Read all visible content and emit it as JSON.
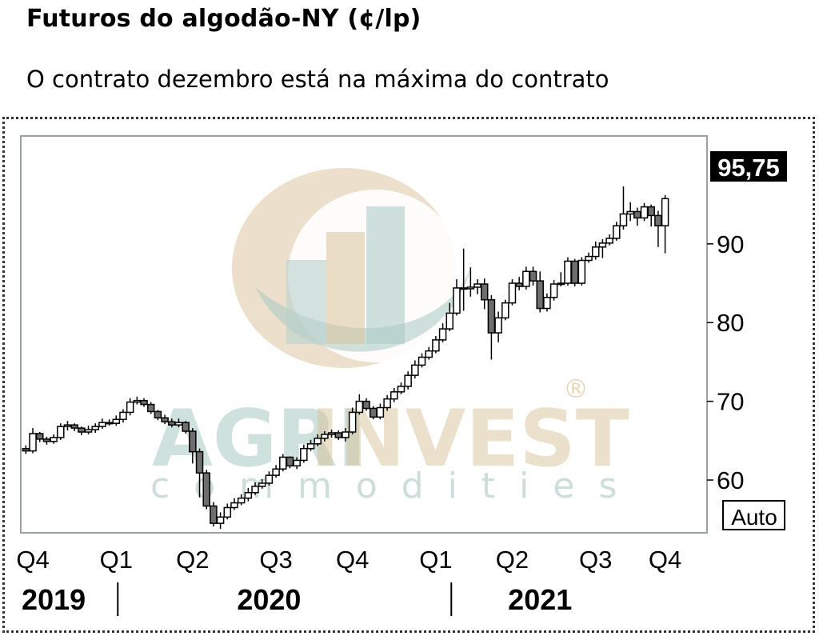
{
  "header": {
    "title": "Futuros do algodão-NY (¢/lp)",
    "subtitle": "O contrato dezembro está na máxima do contrato"
  },
  "watermark": {
    "brand_left": "AGRI",
    "brand_right": "INVEST",
    "sub": "commodities",
    "mark": "®"
  },
  "colors": {
    "accent_tan": "#d9c29a",
    "accent_teal": "#a9c9c3",
    "price_badge_bg": "#000000",
    "plot_border": "#9aa0a8"
  },
  "chart_data": {
    "type": "candlestick",
    "title": "Futuros do algodão-NY (¢/lp)",
    "y_ticks": [
      "90",
      "80",
      "70",
      "60"
    ],
    "y_tick_values": [
      90,
      80,
      70,
      60
    ],
    "ylim": [
      53.5,
      103.5
    ],
    "last_price_label": "95,75",
    "last_price": 95.75,
    "scale_button": "Auto",
    "x_ticks": [
      "Q4",
      "Q1",
      "Q2",
      "Q3",
      "Q4",
      "Q1",
      "Q2",
      "Q3",
      "Q4"
    ],
    "x_tick_weeks": [
      1,
      13,
      24,
      36,
      47,
      59,
      70,
      82,
      92
    ],
    "years": [
      "2019",
      "2020",
      "2021"
    ],
    "year_weeks": [
      4,
      35,
      74
    ],
    "year_separator_weeks": [
      13,
      61
    ],
    "week_range": [
      0,
      95
    ],
    "close": [
      63.7,
      65.9,
      65.2,
      64.9,
      65.4,
      66.8,
      67.0,
      66.6,
      66.1,
      66.4,
      66.8,
      67.3,
      67.2,
      67.7,
      68.6,
      69.9,
      70.1,
      69.6,
      68.7,
      67.9,
      67.4,
      67.0,
      67.3,
      66.2,
      63.6,
      60.9,
      56.7,
      54.5,
      55.3,
      56.5,
      57.1,
      57.7,
      58.4,
      59.2,
      59.6,
      60.6,
      61.4,
      62.9,
      61.8,
      62.5,
      64.0,
      64.6,
      65.3,
      65.8,
      66.0,
      65.4,
      66.1,
      68.6,
      70.0,
      69.1,
      68.0,
      69.2,
      70.3,
      71.2,
      71.9,
      73.3,
      74.6,
      75.6,
      76.4,
      77.8,
      79.2,
      81.2,
      84.4,
      84.3,
      84.5,
      84.9,
      82.9,
      78.7,
      80.6,
      82.5,
      85.0,
      84.6,
      86.5,
      85.3,
      81.8,
      83.2,
      84.9,
      85.0,
      87.8,
      85.0,
      87.9,
      88.4,
      89.6,
      90.1,
      90.7,
      92.3,
      93.8,
      94.1,
      93.3,
      94.7,
      93.6,
      92.3,
      95.75
    ],
    "open": [
      64.0,
      63.7,
      65.9,
      65.2,
      64.9,
      65.4,
      66.8,
      67.0,
      66.6,
      66.1,
      66.4,
      66.8,
      67.3,
      67.2,
      67.7,
      68.6,
      69.9,
      70.1,
      69.6,
      68.7,
      67.9,
      67.4,
      67.0,
      67.3,
      66.2,
      63.6,
      60.9,
      56.7,
      54.5,
      55.3,
      56.5,
      57.1,
      57.7,
      58.4,
      59.2,
      59.6,
      60.6,
      61.4,
      62.9,
      61.8,
      62.5,
      64.0,
      64.6,
      65.3,
      65.8,
      66.0,
      65.4,
      66.1,
      68.6,
      70.0,
      69.1,
      68.0,
      69.2,
      70.3,
      71.2,
      71.9,
      73.3,
      74.6,
      75.6,
      76.4,
      77.8,
      79.2,
      81.2,
      84.4,
      84.3,
      84.5,
      84.9,
      82.9,
      78.7,
      80.6,
      82.5,
      85.0,
      84.6,
      86.5,
      85.3,
      81.8,
      83.2,
      84.9,
      85.0,
      87.8,
      85.0,
      87.9,
      88.4,
      89.6,
      90.1,
      90.7,
      92.3,
      93.8,
      94.1,
      93.3,
      94.7,
      93.6,
      92.3
    ],
    "high": [
      64.4,
      66.6,
      66.1,
      65.5,
      65.8,
      67.2,
      67.5,
      67.2,
      66.8,
      66.9,
      67.2,
      67.8,
      67.7,
      68.2,
      69.0,
      70.4,
      70.6,
      70.4,
      69.9,
      68.9,
      68.3,
      67.8,
      67.8,
      67.5,
      66.6,
      64.0,
      61.3,
      57.2,
      55.9,
      57.0,
      57.7,
      58.2,
      59.0,
      59.7,
      60.1,
      61.1,
      61.9,
      63.3,
      63.0,
      62.9,
      64.5,
      65.1,
      65.8,
      66.2,
      66.4,
      66.3,
      66.6,
      69.2,
      70.9,
      70.4,
      69.4,
      69.7,
      70.8,
      71.7,
      72.4,
      73.8,
      75.2,
      76.1,
      76.9,
      78.3,
      79.9,
      82.5,
      85.5,
      89.4,
      87.0,
      85.5,
      85.6,
      83.5,
      81.4,
      82.9,
      85.5,
      85.8,
      87.1,
      87.1,
      86.5,
      83.7,
      85.4,
      86.4,
      88.3,
      88.1,
      88.3,
      88.9,
      90.3,
      90.6,
      91.2,
      92.8,
      97.3,
      95.3,
      94.6,
      95.2,
      95.0,
      94.2,
      96.2
    ],
    "low": [
      63.3,
      63.4,
      64.8,
      64.5,
      64.6,
      65.1,
      66.3,
      66.2,
      65.7,
      65.8,
      66.0,
      66.5,
      66.9,
      66.9,
      67.3,
      68.2,
      69.6,
      69.3,
      68.4,
      67.6,
      67.1,
      66.7,
      66.7,
      65.9,
      62.1,
      57.8,
      56.3,
      54.1,
      53.8,
      55.0,
      56.2,
      56.8,
      57.3,
      58.1,
      58.9,
      59.3,
      60.3,
      61.1,
      61.5,
      61.4,
      62.2,
      63.7,
      64.3,
      64.9,
      65.4,
      65.1,
      64.9,
      65.8,
      68.3,
      68.8,
      67.7,
      67.7,
      68.8,
      69.9,
      70.9,
      71.5,
      72.9,
      74.3,
      75.3,
      76.1,
      77.5,
      78.9,
      80.9,
      81.5,
      83.3,
      83.6,
      81.7,
      75.3,
      77.5,
      80.3,
      82.2,
      84.1,
      84.2,
      84.7,
      81.3,
      81.4,
      82.8,
      84.6,
      84.7,
      84.6,
      84.7,
      87.6,
      88.0,
      88.2,
      89.8,
      90.4,
      91.8,
      92.9,
      92.3,
      92.9,
      92.2,
      89.6,
      88.8
    ]
  }
}
